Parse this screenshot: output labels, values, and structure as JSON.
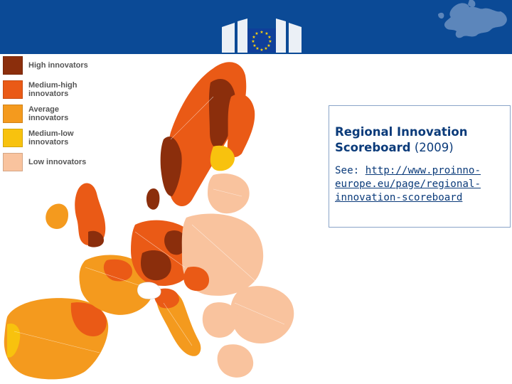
{
  "header": {
    "background": "#0b4a96",
    "logo_icon": "eu-flag-logo",
    "map_icon": "europe-map-icon"
  },
  "legend": {
    "items": [
      {
        "label_line1": "High innovators",
        "label_line2": "",
        "color": "#8b2e0c"
      },
      {
        "label_line1": "Medium-high",
        "label_line2": "innovators",
        "color": "#ea5a16"
      },
      {
        "label_line1": "Average",
        "label_line2": "innovators",
        "color": "#f49a1e"
      },
      {
        "label_line1": "Medium-low",
        "label_line2": "innovators",
        "color": "#f8c20e"
      },
      {
        "label_line1": "Low innovators",
        "label_line2": "",
        "color": "#f9c39e"
      }
    ]
  },
  "info": {
    "title_bold": "Regional Innovation Scoreboard",
    "title_year": "(2009)",
    "see_prefix": "See: ",
    "link_text": "http://www.proinno-europe.eu/page/regional-innovation-scoreboard"
  },
  "map": {
    "icon": "europe-innovation-map"
  }
}
